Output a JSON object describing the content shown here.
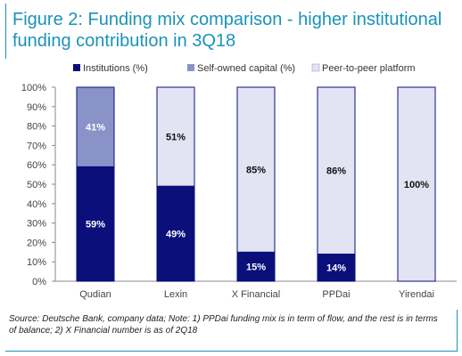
{
  "header": {
    "title": "Figure 2: Funding mix comparison - higher institutional funding contribution in 3Q18"
  },
  "footer": {
    "source": "Source: Deutsche Bank, company data; Note: 1) PPDai funding mix is in term of flow, and the rest is in terms of balance; 2) X Financial number is as of 2Q18"
  },
  "chart_data": {
    "type": "bar",
    "stacked": true,
    "categories": [
      "Qudian",
      "Lexin",
      "X Financial",
      "PPDai",
      "Yirendai"
    ],
    "series": [
      {
        "name": "Institutions (%)",
        "values": [
          59,
          49,
          15,
          14,
          0
        ],
        "labels": [
          "59%",
          "49%",
          "15%",
          "14%",
          ""
        ],
        "color": "#0a0f7a"
      },
      {
        "name": "Self-owned capital (%)",
        "values": [
          41,
          0,
          0,
          0,
          0
        ],
        "labels": [
          "41%",
          "",
          "",
          "",
          ""
        ],
        "color": "#8a93c8"
      },
      {
        "name": "Peer-to-peer platform",
        "values": [
          0,
          51,
          85,
          86,
          100
        ],
        "labels": [
          "",
          "51%",
          "85%",
          "86%",
          "100%"
        ],
        "color": "#e2e3f3"
      }
    ],
    "yticks": [
      "0%",
      "10%",
      "20%",
      "30%",
      "40%",
      "50%",
      "60%",
      "70%",
      "80%",
      "90%",
      "100%"
    ],
    "ylim": [
      0,
      100
    ],
    "legend": "top",
    "grid": false
  }
}
